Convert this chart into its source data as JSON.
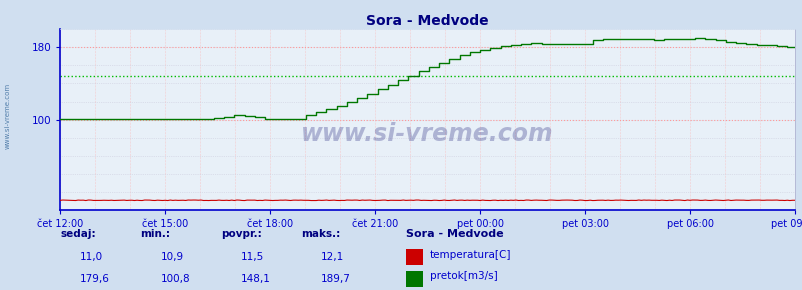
{
  "title": "Sora - Medvode",
  "title_color": "#000080",
  "bg_color": "#d0dff0",
  "plot_bg_color": "#e8f0f8",
  "spine_color": "#0000cc",
  "tick_color": "#0000cc",
  "grid_color_minor": "#ccccdd",
  "grid_color_h_red": "#ff9999",
  "grid_color_v_red": "#ffaaaa",
  "watermark": "www.si-vreme.com",
  "watermark_color": "#000066",
  "watermark_alpha": 0.25,
  "temp_color": "#cc0000",
  "flow_color": "#007700",
  "avg_temp_color": "#ff6666",
  "avg_flow_color": "#00bb00",
  "temp_avg": 11.5,
  "flow_avg": 148.1,
  "ylim": [
    0,
    200
  ],
  "ytick_labels": [
    "100",
    "180"
  ],
  "ytick_vals": [
    100,
    180
  ],
  "xlabel_ticks": [
    "čet 12:00",
    "čet 15:00",
    "čet 18:00",
    "čet 21:00",
    "pet 00:00",
    "pet 03:00",
    "pet 06:00",
    "pet 09:00"
  ],
  "legend_labels": [
    "temperatura[C]",
    "pretok[m3/s]"
  ],
  "legend_colors": [
    "#cc0000",
    "#007700"
  ],
  "stat_labels": [
    "sedaj:",
    "min.:",
    "povpr.:",
    "maks.:"
  ],
  "stat_temp": [
    "11,0",
    "10,9",
    "11,5",
    "12,1"
  ],
  "stat_flow": [
    "179,6",
    "100,8",
    "148,1",
    "189,7"
  ],
  "station_label": "Sora - Medvode",
  "num_points": 288
}
